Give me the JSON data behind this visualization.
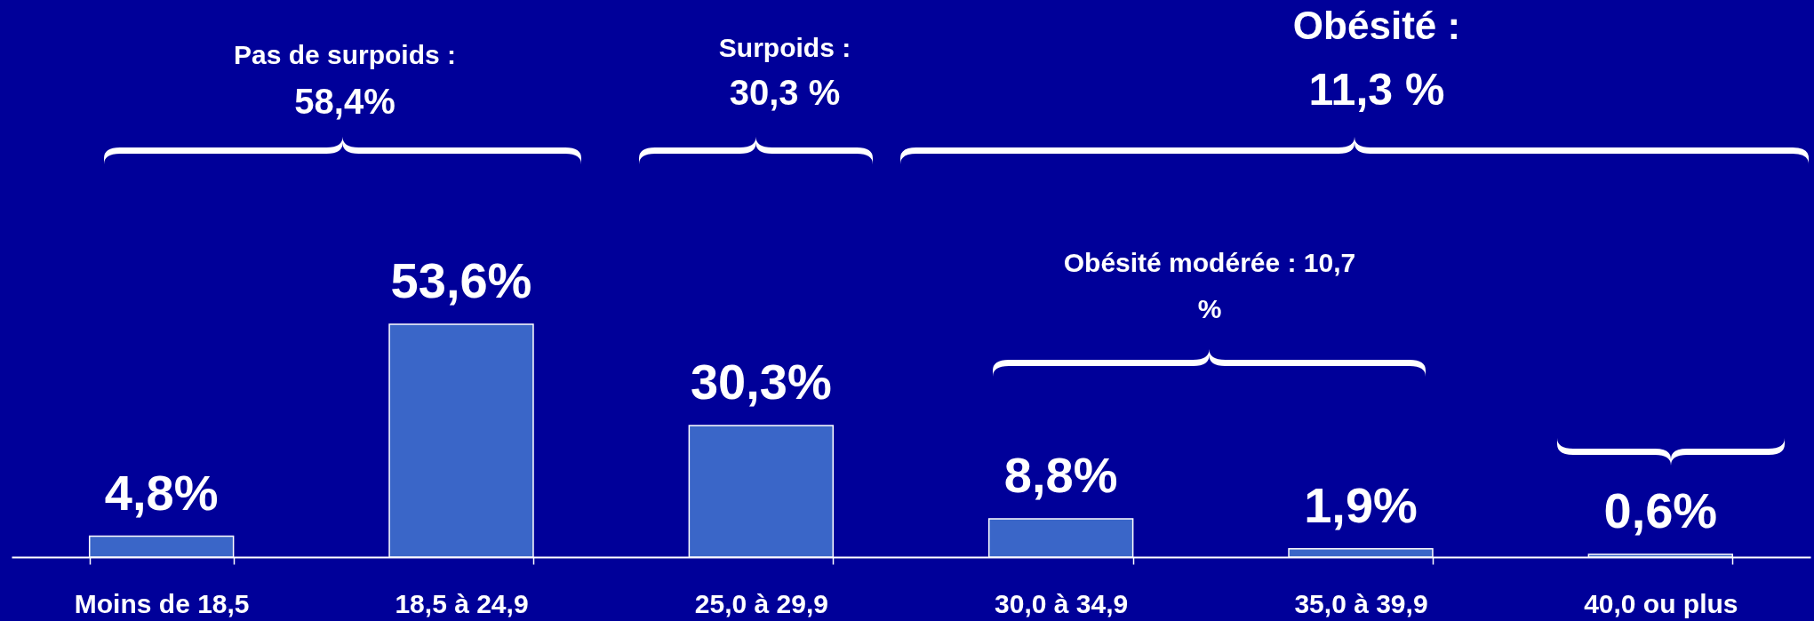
{
  "chart_data": {
    "type": "bar",
    "categories": [
      "Moins de 18,5",
      "18,5 à 24,9",
      "25,0 à 29,9",
      "30,0 à 34,9",
      "35,0 à 39,9",
      "40,0 ou plus"
    ],
    "values": [
      4.8,
      53.6,
      30.3,
      8.8,
      1.9,
      0.6
    ],
    "value_labels": [
      "4,8%",
      "53,6%",
      "30,3%",
      "8,8%",
      "1,9%",
      "0,6%"
    ],
    "color": "#3a66c8",
    "annotations": [
      "Pas de surpoids :\n58,4%",
      "Surpoids :\n30,3 %",
      "Obésité :\n11,3 %",
      "Obésité modérée : 10,7\n%"
    ]
  }
}
